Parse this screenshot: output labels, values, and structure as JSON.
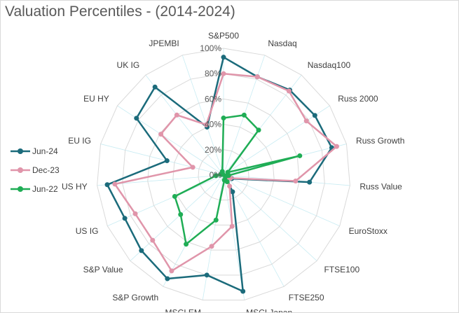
{
  "chart_data": {
    "type": "radar",
    "title": "Valuation Percentiles - (2014-2024)",
    "categories": [
      "S&P500",
      "Nasdaq",
      "Nasdaq100",
      "Russ 2000",
      "Russ Growth",
      "Russ Value",
      "EuroStoxx",
      "FTSE100",
      "FTSE250",
      "MSCI Japan",
      "MSCI EM",
      "S&P Growth",
      "S&P Value",
      "US IG",
      "US HY",
      "EU IG",
      "EU HY",
      "UK IG",
      "JPEMBI"
    ],
    "radial_ticks": [
      "0%",
      "20%",
      "40%",
      "60%",
      "80%",
      "100%"
    ],
    "rlim": [
      0,
      100
    ],
    "legend_position": "left",
    "grid": true,
    "series": [
      {
        "name": "Jun-24",
        "color": "#1b6b7b",
        "values": [
          93,
          82,
          85,
          86,
          88,
          68,
          7,
          3,
          15,
          93,
          80,
          93,
          88,
          85,
          92,
          46,
          82,
          88,
          40
        ]
      },
      {
        "name": "Dec-23",
        "color": "#e095aa",
        "values": [
          80,
          82,
          84,
          78,
          92,
          57,
          6,
          3,
          10,
          41,
          57,
          86,
          76,
          76,
          86,
          25,
          59,
          60,
          42
        ]
      },
      {
        "name": "Jun-22",
        "color": "#1fad55",
        "values": [
          45,
          50,
          45,
          4,
          62,
          4,
          2,
          2,
          6,
          4,
          36,
          62,
          46,
          42,
          6,
          2,
          1,
          1,
          3
        ]
      }
    ]
  }
}
